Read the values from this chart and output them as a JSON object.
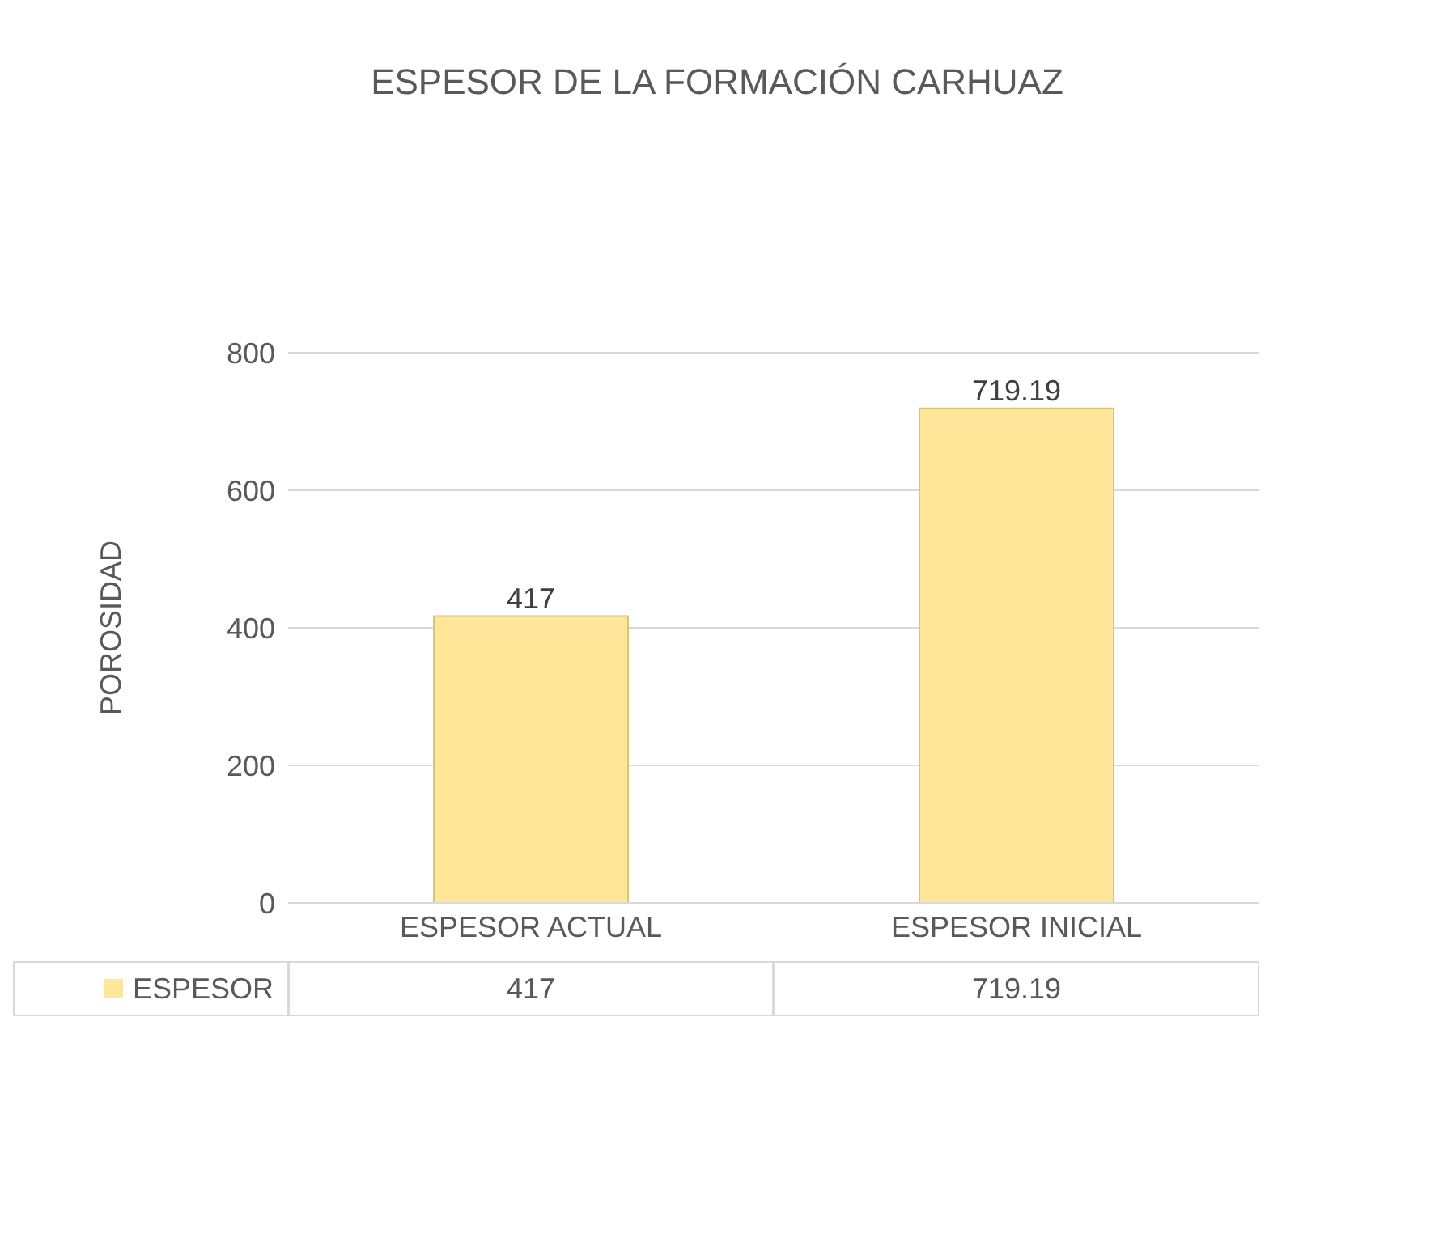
{
  "chart_data": {
    "type": "bar",
    "title": "ESPESOR DE LA FORMACIÓN CARHUAZ",
    "ylabel": "POROSIDAD",
    "categories": [
      "ESPESOR ACTUAL",
      "ESPESOR INICIAL"
    ],
    "series": [
      {
        "name": "ESPESOR",
        "color": "#ffe699",
        "values": [
          417,
          719.19
        ]
      }
    ],
    "annotations": [
      "417",
      "719.19"
    ],
    "ylim": [
      0,
      800
    ],
    "yticks": [
      0,
      200,
      400,
      600,
      800
    ],
    "grid": "y",
    "data_labels": true,
    "legend": "bottom"
  }
}
